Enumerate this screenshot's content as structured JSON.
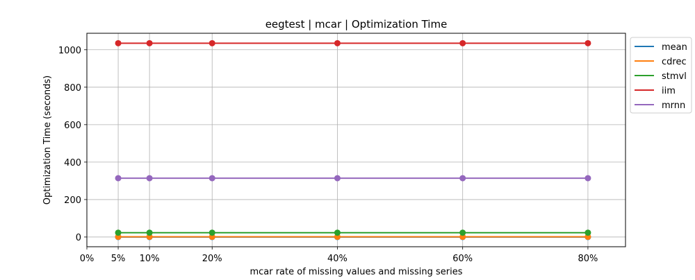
{
  "chart_data": {
    "type": "line",
    "title": "eegtest | mcar | Optimization Time",
    "xlabel": "mcar rate of missing values and missing series",
    "ylabel": "Optimization Time (seconds)",
    "x": [
      0.05,
      0.1,
      0.2,
      0.4,
      0.6,
      0.8
    ],
    "xticks": [
      0,
      0.05,
      0.1,
      0.2,
      0.4,
      0.6,
      0.8
    ],
    "xtick_labels": [
      "0%",
      "5%",
      "10%",
      "20%",
      "40%",
      "60%",
      "80%"
    ],
    "xlim": [
      0,
      0.86
    ],
    "yticks": [
      0,
      200,
      400,
      600,
      800,
      1000
    ],
    "ytick_labels": [
      "0",
      "200",
      "400",
      "600",
      "800",
      "1000"
    ],
    "ylim": [
      -52,
      1088
    ],
    "grid": true,
    "legend_position": "outside-top-right",
    "series": [
      {
        "name": "mean",
        "color": "#1f77b4",
        "values": [
          0,
          0,
          0,
          0,
          0,
          0
        ]
      },
      {
        "name": "cdrec",
        "color": "#ff7f0e",
        "values": [
          1,
          1,
          1,
          1,
          1,
          1
        ]
      },
      {
        "name": "stmvl",
        "color": "#2ca02c",
        "values": [
          23,
          23,
          23,
          23,
          23,
          23
        ]
      },
      {
        "name": "iim",
        "color": "#d62728",
        "values": [
          1035,
          1035,
          1035,
          1035,
          1035,
          1035
        ]
      },
      {
        "name": "mrnn",
        "color": "#9467bd",
        "values": [
          314,
          314,
          314,
          314,
          314,
          314
        ]
      }
    ]
  }
}
